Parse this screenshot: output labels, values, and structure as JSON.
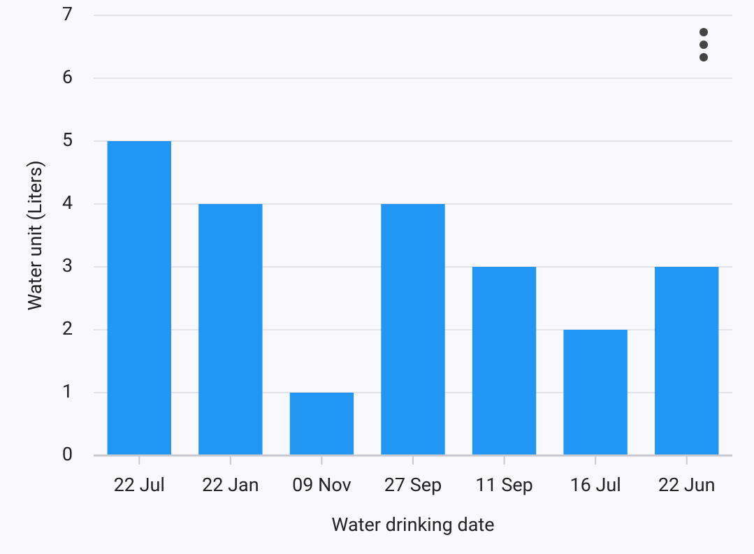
{
  "chart_data": {
    "type": "bar",
    "x_label": "Water drinking date",
    "y_label": "Water unit (Liters)",
    "categories": [
      "22 Jul",
      "22 Jan",
      "09 Nov",
      "27 Sep",
      "11 Sep",
      "16 Jul",
      "22 Jun"
    ],
    "values": [
      5,
      4,
      1,
      4,
      3,
      2,
      3
    ],
    "color": "#2196f3",
    "ylim": [
      0,
      7
    ],
    "yticks": [
      0,
      1,
      2,
      3,
      4,
      5,
      6,
      7
    ],
    "grid": true
  }
}
